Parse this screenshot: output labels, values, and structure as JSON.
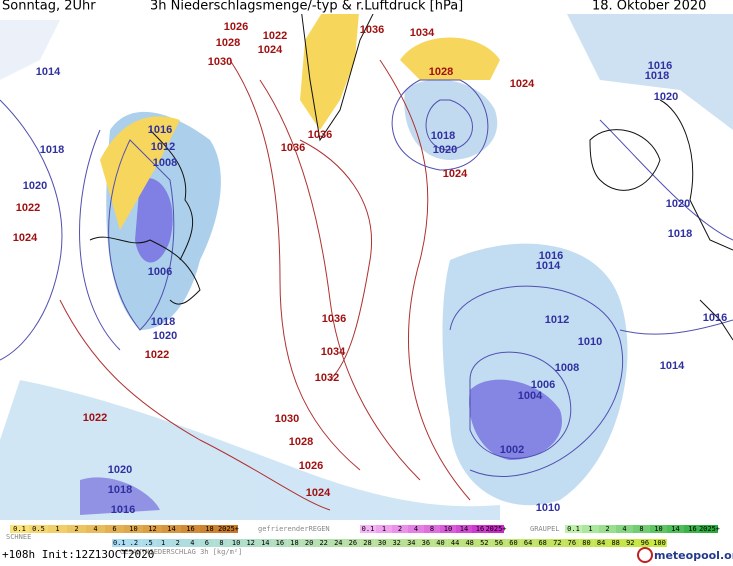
{
  "header": {
    "time": "Sonntag, 2Uhr",
    "title": "3h Niederschlagsmenge/-typ & r.Luftdruck [hPa]",
    "date": "18. Oktober 2020"
  },
  "pressure_labels": [
    "1014",
    "1018",
    "1020",
    "1022",
    "1024",
    "1016",
    "1012",
    "1008",
    "1006",
    "1018",
    "1020",
    "1022",
    "1022",
    "1020",
    "1018",
    "1016",
    "1026",
    "1028",
    "1024",
    "1022",
    "1030",
    "1036",
    "1034",
    "1028",
    "1024",
    "1018",
    "1020",
    "1024",
    "1036",
    "1036",
    "1016",
    "1018",
    "1020",
    "1020",
    "1018",
    "1016",
    "1014",
    "1012",
    "1010",
    "1008",
    "1006",
    "1004",
    "1002",
    "1010",
    "1014",
    "1016",
    "1036",
    "1034",
    "1032",
    "1030",
    "1028",
    "1026",
    "1024"
  ],
  "legend": {
    "snow": {
      "label": "SCHNEE",
      "ticks": [
        "0.1",
        "0.5",
        "1",
        "2",
        "4",
        "6",
        "10",
        "12",
        "14",
        "16",
        "18",
        "2025+"
      ]
    },
    "freezing_rain": {
      "label": "gefrierenderREGEN",
      "ticks": [
        "0.1",
        "1",
        "2",
        "4",
        "8",
        "10",
        "14",
        "16",
        "2025+"
      ]
    },
    "graupel": {
      "label": "GRAUPEL",
      "ticks": [
        "0.1",
        "1",
        "2",
        "4",
        "8",
        "10",
        "14",
        "16",
        "2025+"
      ]
    },
    "total": {
      "label": "GESAMTNIEDERSCHLAG 3h [kg/m²]",
      "ticks": [
        "0.1",
        ".2",
        ".5",
        "1",
        "2",
        "4",
        "6",
        "8",
        "10",
        "12",
        "14",
        "16",
        "18",
        "20",
        "22",
        "24",
        "26",
        "28",
        "30",
        "32",
        "34",
        "36",
        "40",
        "44",
        "48",
        "52",
        "56",
        "60",
        "64",
        "68",
        "72",
        "76",
        "80",
        "84",
        "88",
        "92",
        "96",
        "100"
      ]
    }
  },
  "footer": {
    "run": "+108h Init:12Z13OCT2020",
    "brand": "meteopool.org"
  }
}
